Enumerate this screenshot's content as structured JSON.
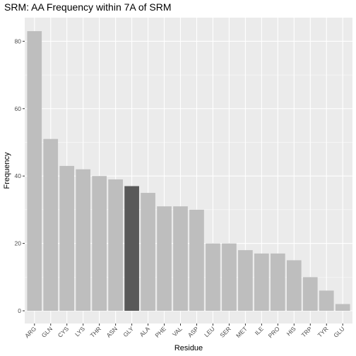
{
  "chart_data": {
    "type": "bar",
    "title": "SRM: AA Frequency within 7A of SRM",
    "xlabel": "Residue",
    "ylabel": "Frequency",
    "categories": [
      "ARG",
      "GLN",
      "CYS",
      "LYS",
      "THR",
      "ASN",
      "GLY",
      "ALA",
      "PHE",
      "VAL",
      "ASP",
      "LEU",
      "SER",
      "MET",
      "ILE",
      "PRO",
      "HIS",
      "TRP",
      "TYR",
      "GLU"
    ],
    "values": [
      83,
      51,
      43,
      42,
      40,
      39,
      37,
      35,
      31,
      31,
      30,
      20,
      20,
      18,
      17,
      17,
      15,
      10,
      6,
      2
    ],
    "highlight": "GLY",
    "yticks": [
      0,
      20,
      40,
      60,
      80
    ],
    "ylim": [
      0,
      87
    ],
    "grid": true,
    "colors": {
      "panel": "#ebebeb",
      "grid": "#ffffff",
      "bar": "#bebebe",
      "highlight": "#595959"
    }
  }
}
